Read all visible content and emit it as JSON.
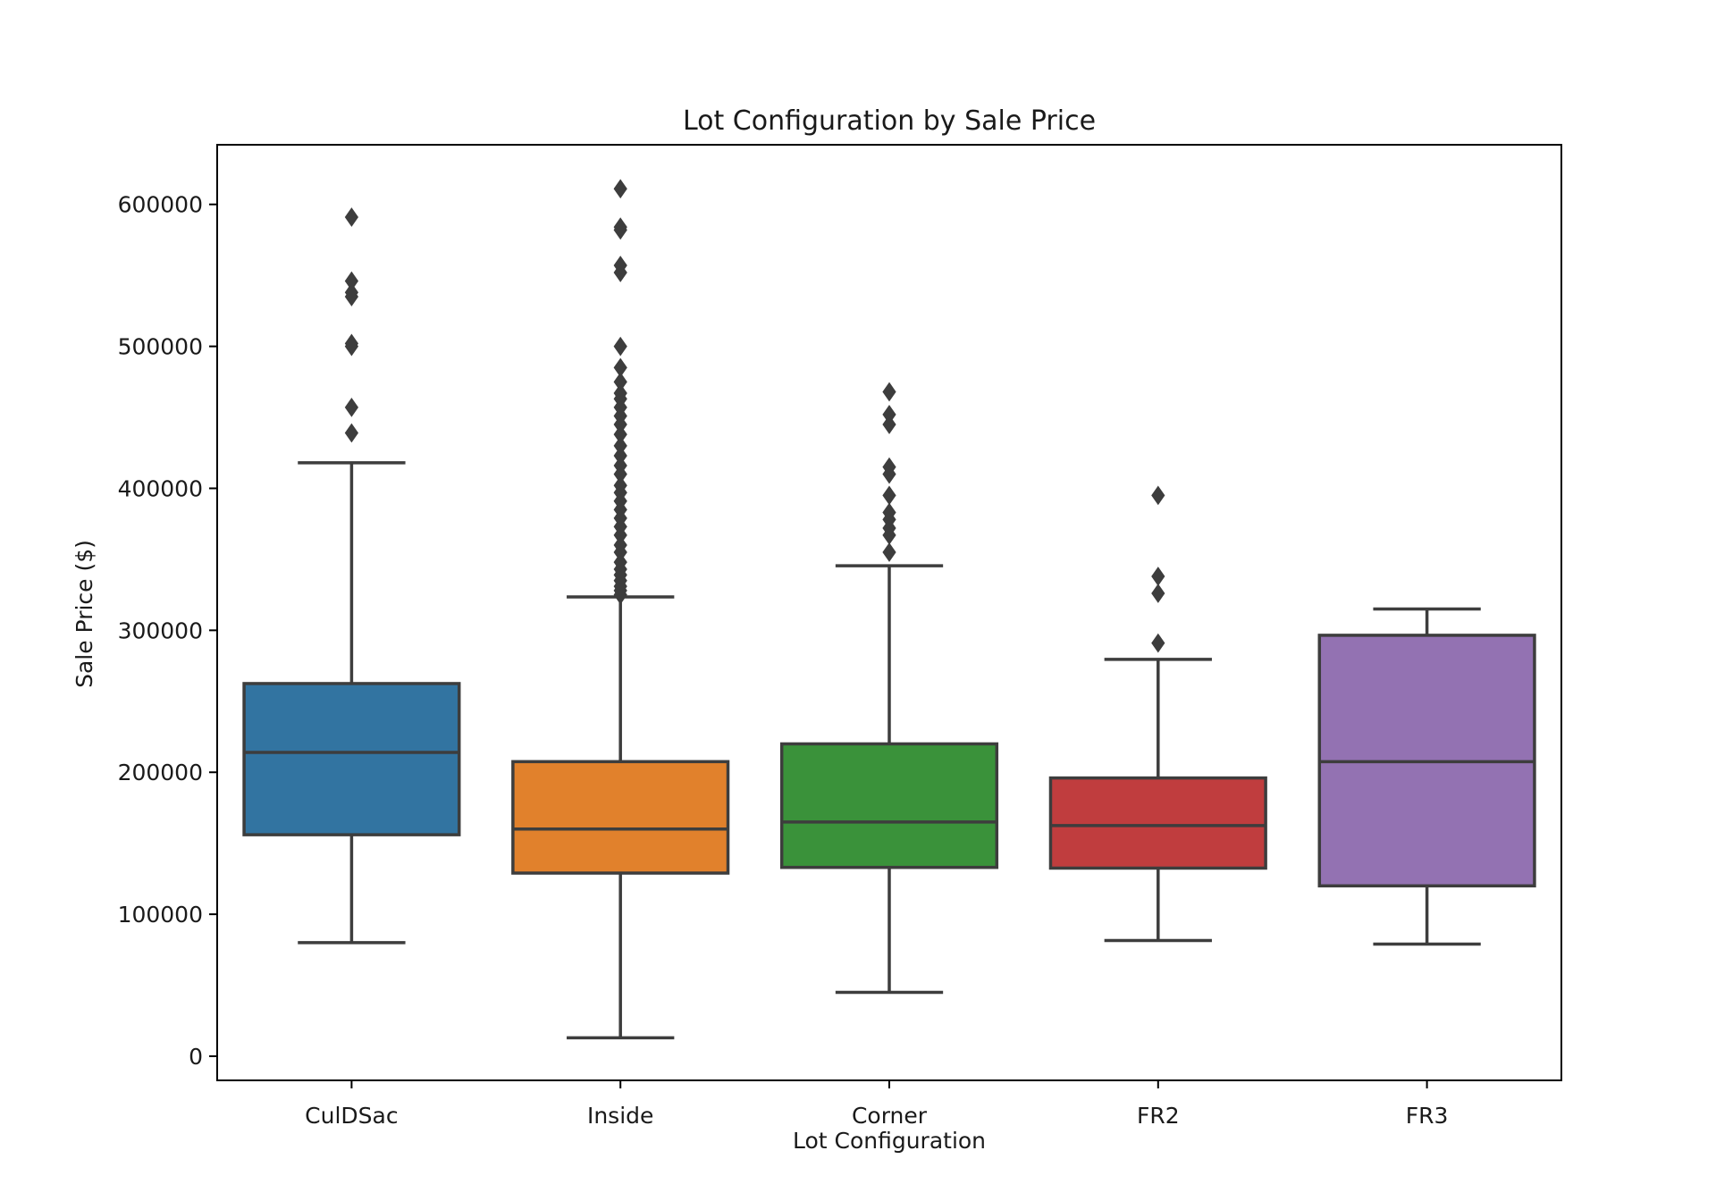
{
  "chart_data": {
    "type": "box",
    "title": "Lot Configuration by Sale Price",
    "xlabel": "Lot Configuration",
    "ylabel": "Sale Price ($)",
    "ylim": [
      -17000,
      642000
    ],
    "yticks": [
      0,
      100000,
      200000,
      300000,
      400000,
      500000,
      600000
    ],
    "grid": false,
    "legend": "none",
    "categories": [
      "CulDSac",
      "Inside",
      "Corner",
      "FR2",
      "FR3"
    ],
    "series": [
      {
        "category": "CulDSac",
        "color": "#3274a1",
        "whisker_low": 80000,
        "q1": 156000,
        "median": 214000,
        "q3": 262500,
        "whisker_high": 418000,
        "outliers": [
          439000,
          457000,
          500000,
          502000,
          535000,
          538000,
          546000,
          591000
        ]
      },
      {
        "category": "Inside",
        "color": "#e1812c",
        "whisker_low": 13000,
        "q1": 129000,
        "median": 160000,
        "q3": 207500,
        "whisker_high": 323500,
        "outliers": [
          325000,
          328000,
          331000,
          335000,
          339000,
          343000,
          348000,
          355000,
          360000,
          367000,
          373000,
          379000,
          385000,
          391000,
          397000,
          402000,
          410000,
          416000,
          423000,
          430000,
          438000,
          445000,
          451000,
          457000,
          463000,
          467000,
          475000,
          485000,
          500000,
          552000,
          557000,
          582000,
          584000,
          611000
        ]
      },
      {
        "category": "Corner",
        "color": "#3a923a",
        "whisker_low": 45000,
        "q1": 133000,
        "median": 165000,
        "q3": 220000,
        "whisker_high": 345500,
        "outliers": [
          355000,
          367000,
          372000,
          378000,
          383000,
          395000,
          410000,
          415000,
          445000,
          452000,
          468000
        ]
      },
      {
        "category": "FR2",
        "color": "#c03d3e",
        "whisker_low": 81500,
        "q1": 132500,
        "median": 162500,
        "q3": 196000,
        "whisker_high": 279500,
        "outliers": [
          291000,
          326000,
          338000,
          395000
        ]
      },
      {
        "category": "FR3",
        "color": "#9372b2",
        "whisker_low": 79000,
        "q1": 120000,
        "median": 207500,
        "q3": 296500,
        "whisker_high": 315000,
        "outliers": []
      }
    ]
  }
}
